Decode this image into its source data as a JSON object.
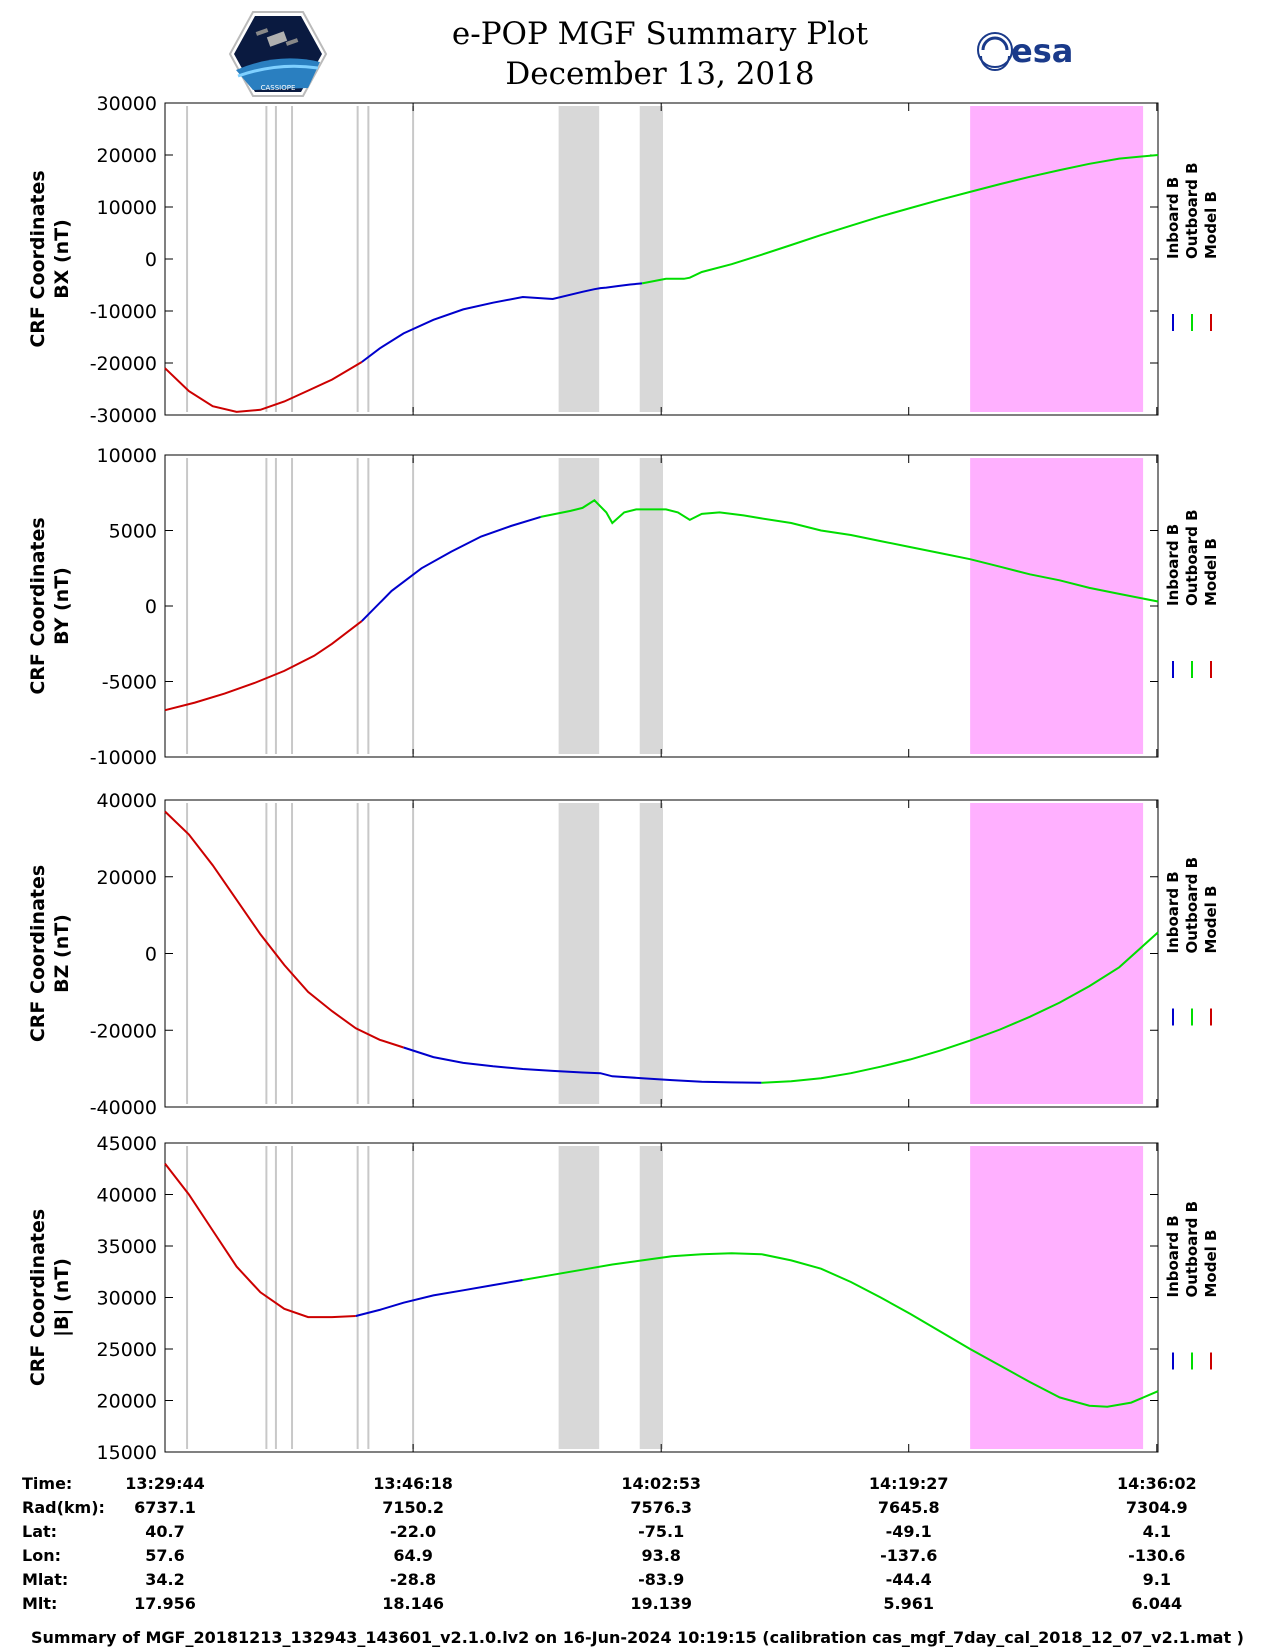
{
  "header": {
    "title": "e-POP MGF Summary Plot",
    "date": "December 13, 2018",
    "left_logo_text": "CASSIOPE",
    "right_logo_text": "esa"
  },
  "colors": {
    "inboard": "#0000cc",
    "outboard": "#00dd00",
    "model": "#cc0000",
    "gray_band": "#d8d8d8",
    "pink_band": "#ffb0ff",
    "gray_line": "#c8c8c8"
  },
  "chart_data": [
    {
      "type": "line",
      "ylabel1": "CRF Coordinates",
      "ylabel2": "BX (nT)",
      "ylim": [
        -30000,
        30000
      ],
      "yticks": [
        30000,
        20000,
        10000,
        0,
        -10000,
        -20000,
        -30000
      ],
      "legend": [
        "Inboard B",
        "Outboard B",
        "Model B"
      ],
      "series": [
        {
          "name": "Model B",
          "color": "model",
          "x": [
            0,
            4,
            8,
            12,
            16,
            20,
            24,
            28,
            33
          ],
          "values": [
            -21000,
            -25400,
            -28300,
            -29400,
            -29000,
            -27400,
            -25300,
            -23200,
            -19800
          ]
        },
        {
          "name": "Inboard B",
          "color": "inboard",
          "x": [
            33,
            36,
            40,
            45,
            50,
            55,
            60,
            65,
            70,
            72,
            73,
            74,
            76,
            78,
            80
          ],
          "values": [
            -19800,
            -17200,
            -14300,
            -11700,
            -9700,
            -8400,
            -7300,
            -7700,
            -6300,
            -5800,
            -5600,
            -5500,
            -5200,
            -4900,
            -4700
          ]
        },
        {
          "name": "Outboard B",
          "color": "outboard",
          "x": [
            80,
            84,
            87,
            88,
            90,
            95,
            100,
            105,
            110,
            115,
            120,
            125,
            130,
            135,
            140,
            145,
            150,
            155,
            160,
            166.5
          ],
          "values": [
            -4700,
            -3800,
            -3800,
            -3600,
            -2500,
            -1000,
            800,
            2700,
            4600,
            6400,
            8200,
            9800,
            11400,
            12900,
            14400,
            15800,
            17100,
            18300,
            19300,
            20000
          ]
        }
      ]
    },
    {
      "type": "line",
      "ylabel1": "CRF Coordinates",
      "ylabel2": "BY (nT)",
      "ylim": [
        -10000,
        10000
      ],
      "yticks": [
        10000,
        5000,
        0,
        -5000,
        -10000
      ],
      "legend": [
        "Inboard B",
        "Outboard B",
        "Model B"
      ],
      "series": [
        {
          "name": "Model B",
          "color": "model",
          "x": [
            0,
            5,
            10,
            15,
            20,
            25,
            28,
            33
          ],
          "values": [
            -6900,
            -6400,
            -5800,
            -5100,
            -4300,
            -3300,
            -2500,
            -1000
          ]
        },
        {
          "name": "Inboard B",
          "color": "inboard",
          "x": [
            33,
            38,
            43,
            48,
            53,
            58,
            63
          ],
          "values": [
            -1000,
            1000,
            2500,
            3600,
            4600,
            5300,
            5900
          ]
        },
        {
          "name": "Outboard B",
          "color": "outboard",
          "x": [
            63,
            68,
            70,
            72,
            74,
            75,
            77,
            79,
            81,
            84,
            86,
            88,
            90,
            93,
            97,
            100,
            105,
            110,
            115,
            120,
            125,
            130,
            135,
            140,
            145,
            150,
            155,
            160,
            166.5
          ],
          "values": [
            5900,
            6300,
            6500,
            7000,
            6200,
            5500,
            6200,
            6400,
            6400,
            6400,
            6200,
            5700,
            6100,
            6200,
            6000,
            5800,
            5500,
            5000,
            4700,
            4300,
            3900,
            3500,
            3100,
            2600,
            2100,
            1700,
            1200,
            800,
            300
          ]
        }
      ]
    },
    {
      "type": "line",
      "ylabel1": "CRF Coordinates",
      "ylabel2": "BZ (nT)",
      "ylim": [
        -40000,
        40000
      ],
      "yticks": [
        40000,
        20000,
        0,
        -20000,
        -40000
      ],
      "legend": [
        "Inboard B",
        "Outboard B",
        "Model B"
      ],
      "series": [
        {
          "name": "Model B",
          "color": "model",
          "x": [
            0,
            4,
            8,
            12,
            16,
            20,
            24,
            28,
            32,
            36,
            40
          ],
          "values": [
            37000,
            31000,
            23000,
            14000,
            5000,
            -3000,
            -10000,
            -15000,
            -19500,
            -22500,
            -24500
          ]
        },
        {
          "name": "Inboard B",
          "color": "inboard",
          "x": [
            40,
            45,
            50,
            55,
            60,
            65,
            70,
            73,
            75,
            80,
            85,
            90,
            95,
            100
          ],
          "values": [
            -24500,
            -27000,
            -28500,
            -29400,
            -30100,
            -30600,
            -31000,
            -31200,
            -32000,
            -32500,
            -33000,
            -33400,
            -33600,
            -33700
          ]
        },
        {
          "name": "Outboard B",
          "color": "outboard",
          "x": [
            100,
            105,
            110,
            115,
            120,
            125,
            130,
            135,
            140,
            145,
            150,
            155,
            160,
            166.5
          ],
          "values": [
            -33700,
            -33300,
            -32500,
            -31200,
            -29500,
            -27600,
            -25300,
            -22700,
            -19800,
            -16500,
            -12800,
            -8500,
            -3600,
            5500
          ]
        }
      ]
    },
    {
      "type": "line",
      "ylabel1": "CRF Coordinates",
      "ylabel2": "|B| (nT)",
      "ylim": [
        15000,
        45000
      ],
      "yticks": [
        45000,
        40000,
        35000,
        30000,
        25000,
        20000,
        15000
      ],
      "legend": [
        "Inboard B",
        "Outboard B",
        "Model B"
      ],
      "series": [
        {
          "name": "Model B",
          "color": "model",
          "x": [
            0,
            4,
            8,
            12,
            16,
            20,
            24,
            28,
            32
          ],
          "values": [
            43000,
            40000,
            36500,
            33000,
            30500,
            28900,
            28100,
            28100,
            28200
          ]
        },
        {
          "name": "Inboard B",
          "color": "inboard",
          "x": [
            32,
            36,
            40,
            45,
            50,
            55,
            60
          ],
          "values": [
            28200,
            28800,
            29500,
            30200,
            30700,
            31200,
            31700
          ]
        },
        {
          "name": "Outboard B",
          "color": "outboard",
          "x": [
            60,
            65,
            70,
            75,
            80,
            85,
            90,
            95,
            100,
            105,
            110,
            115,
            120,
            125,
            130,
            135,
            140,
            145,
            150,
            155,
            158,
            162,
            166.5
          ],
          "values": [
            31700,
            32200,
            32700,
            33200,
            33600,
            34000,
            34200,
            34300,
            34200,
            33600,
            32800,
            31500,
            30000,
            28400,
            26700,
            25000,
            23400,
            21800,
            20300,
            19500,
            19400,
            19800,
            20900
          ]
        }
      ]
    }
  ],
  "x_axis": {
    "range": [
      0,
      166.5
    ],
    "tick_positions": [
      0,
      41.6,
      83.2,
      124.7,
      166.3
    ]
  },
  "shaded_regions": {
    "gray_bands": [
      [
        66,
        72.8
      ],
      [
        79.6,
        83.5
      ]
    ],
    "pink_bands": [
      [
        135,
        164
      ]
    ],
    "gray_lines": [
      3.7,
      17,
      18.6,
      21.3,
      32.3,
      34.1,
      41.6
    ]
  },
  "info_table": {
    "labels": [
      "Time:",
      "Rad(km):",
      "Lat:",
      "Lon:",
      "Mlat:",
      "Mlt:"
    ],
    "columns": [
      [
        "13:29:44",
        "6737.1",
        "40.7",
        "57.6",
        "34.2",
        "17.956"
      ],
      [
        "13:46:18",
        "7150.2",
        "-22.0",
        "64.9",
        "-28.8",
        "18.146"
      ],
      [
        "14:02:53",
        "7576.3",
        "-75.1",
        "93.8",
        "-83.9",
        "19.139"
      ],
      [
        "14:19:27",
        "7645.8",
        "-49.1",
        "-137.6",
        "-44.4",
        "5.961"
      ],
      [
        "14:36:02",
        "7304.9",
        "4.1",
        "-130.6",
        "9.1",
        "6.044"
      ]
    ]
  },
  "footer": "Summary of MGF_20181213_132943_143601_v2.1.0.lv2 on 16-Jun-2024 10:19:15 (calibration cas_mgf_7day_cal_2018_12_07_v2.1.mat )"
}
